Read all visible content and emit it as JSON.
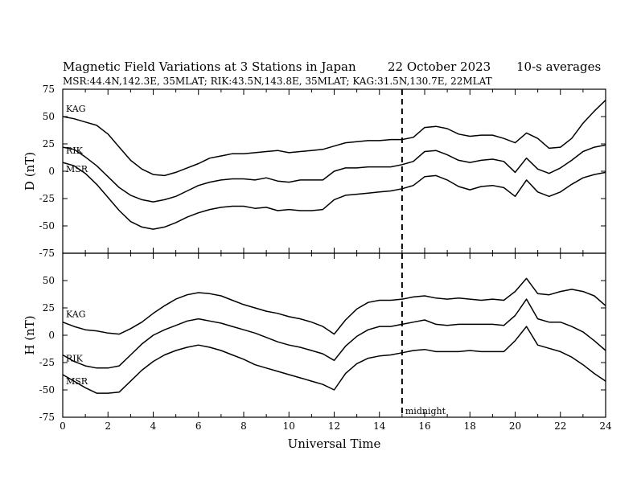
{
  "header": {
    "title": "Magnetic Field Variations at 3 Stations in Japan",
    "date": "22 October 2023",
    "averaging": "10-s averages",
    "stations_line": "MSR:44.4N,142.3E, 35MLAT;  RIK:43.5N,143.8E, 35MLAT;  KAG:31.5N,130.7E, 22MLAT"
  },
  "chart_data": [
    {
      "type": "line",
      "panel": "D",
      "ylabel": "D (nT)",
      "ylim": [
        -75,
        75
      ],
      "yticks": [
        75,
        50,
        25,
        0,
        -25,
        -50,
        -75
      ],
      "xlim": [
        0,
        24
      ],
      "grid": false,
      "series": [
        {
          "name": "KAG",
          "x": [
            0,
            0.5,
            1,
            1.5,
            2,
            2.5,
            3,
            3.5,
            4,
            4.5,
            5,
            5.5,
            6,
            6.5,
            7,
            7.5,
            8,
            8.5,
            9,
            9.5,
            10,
            10.5,
            11,
            11.5,
            12,
            12.5,
            13,
            13.5,
            14,
            14.5,
            15,
            15.5,
            16,
            16.5,
            17,
            17.5,
            18,
            18.5,
            19,
            19.5,
            20,
            20.5,
            21,
            21.5,
            22,
            22.5,
            23,
            23.5,
            24
          ],
          "values": [
            50,
            48,
            45,
            42,
            34,
            22,
            10,
            2,
            -3,
            -4,
            -1,
            3,
            7,
            12,
            14,
            16,
            16,
            17,
            18,
            19,
            17,
            18,
            19,
            20,
            23,
            26,
            27,
            28,
            28,
            29,
            29,
            31,
            40,
            41,
            39,
            34,
            32,
            33,
            33,
            30,
            26,
            35,
            30,
            21,
            22,
            30,
            44,
            55,
            65
          ]
        },
        {
          "name": "RIK",
          "x": [
            0,
            0.5,
            1,
            1.5,
            2,
            2.5,
            3,
            3.5,
            4,
            4.5,
            5,
            5.5,
            6,
            6.5,
            7,
            7.5,
            8,
            8.5,
            9,
            9.5,
            10,
            10.5,
            11,
            11.5,
            12,
            12.5,
            13,
            13.5,
            14,
            14.5,
            15,
            15.5,
            16,
            16.5,
            17,
            17.5,
            18,
            18.5,
            19,
            19.5,
            20,
            20.5,
            21,
            21.5,
            22,
            22.5,
            23,
            23.5,
            24
          ],
          "values": [
            22,
            20,
            13,
            5,
            -5,
            -15,
            -22,
            -26,
            -28,
            -26,
            -23,
            -18,
            -13,
            -10,
            -8,
            -7,
            -7,
            -8,
            -6,
            -9,
            -10,
            -8,
            -8,
            -8,
            0,
            3,
            3,
            4,
            4,
            4,
            6,
            9,
            18,
            19,
            15,
            10,
            8,
            10,
            11,
            9,
            -1,
            12,
            2,
            -2,
            3,
            10,
            18,
            22,
            24
          ]
        },
        {
          "name": "MSR",
          "x": [
            0,
            0.5,
            1,
            1.5,
            2,
            2.5,
            3,
            3.5,
            4,
            4.5,
            5,
            5.5,
            6,
            6.5,
            7,
            7.5,
            8,
            8.5,
            9,
            9.5,
            10,
            10.5,
            11,
            11.5,
            12,
            12.5,
            13,
            13.5,
            14,
            14.5,
            15,
            15.5,
            16,
            16.5,
            17,
            17.5,
            18,
            18.5,
            19,
            19.5,
            20,
            20.5,
            21,
            21.5,
            22,
            22.5,
            23,
            23.5,
            24
          ],
          "values": [
            8,
            5,
            -2,
            -12,
            -24,
            -36,
            -46,
            -51,
            -53,
            -51,
            -47,
            -42,
            -38,
            -35,
            -33,
            -32,
            -32,
            -34,
            -33,
            -36,
            -35,
            -36,
            -36,
            -35,
            -26,
            -22,
            -21,
            -20,
            -19,
            -18,
            -16,
            -13,
            -5,
            -4,
            -8,
            -14,
            -17,
            -14,
            -13,
            -15,
            -23,
            -8,
            -19,
            -23,
            -19,
            -12,
            -6,
            -3,
            -1
          ]
        }
      ]
    },
    {
      "type": "line",
      "panel": "H",
      "ylabel": "H (nT)",
      "ylim": [
        -75,
        75
      ],
      "yticks": [
        50,
        25,
        0,
        -25,
        -50,
        -75
      ],
      "xlim": [
        0,
        24
      ],
      "xticks": [
        0,
        2,
        4,
        6,
        8,
        10,
        12,
        14,
        16,
        18,
        20,
        22,
        24
      ],
      "xlabel": "Universal Time",
      "grid": false,
      "series": [
        {
          "name": "KAG",
          "x": [
            0,
            0.5,
            1,
            1.5,
            2,
            2.5,
            3,
            3.5,
            4,
            4.5,
            5,
            5.5,
            6,
            6.5,
            7,
            7.5,
            8,
            8.5,
            9,
            9.5,
            10,
            10.5,
            11,
            11.5,
            12,
            12.5,
            13,
            13.5,
            14,
            14.5,
            15,
            15.5,
            16,
            16.5,
            17,
            17.5,
            18,
            18.5,
            19,
            19.5,
            20,
            20.5,
            21,
            21.5,
            22,
            22.5,
            23,
            23.5,
            24
          ],
          "values": [
            12,
            8,
            5,
            4,
            2,
            1,
            6,
            12,
            20,
            27,
            33,
            37,
            39,
            38,
            36,
            32,
            28,
            25,
            22,
            20,
            17,
            15,
            12,
            8,
            1,
            14,
            24,
            30,
            32,
            32,
            33,
            35,
            36,
            34,
            33,
            34,
            33,
            32,
            33,
            32,
            40,
            52,
            38,
            37,
            40,
            42,
            40,
            36,
            27
          ]
        },
        {
          "name": "RIK",
          "x": [
            0,
            0.5,
            1,
            1.5,
            2,
            2.5,
            3,
            3.5,
            4,
            4.5,
            5,
            5.5,
            6,
            6.5,
            7,
            7.5,
            8,
            8.5,
            9,
            9.5,
            10,
            10.5,
            11,
            11.5,
            12,
            12.5,
            13,
            13.5,
            14,
            14.5,
            15,
            15.5,
            16,
            16.5,
            17,
            17.5,
            18,
            18.5,
            19,
            19.5,
            20,
            20.5,
            21,
            21.5,
            22,
            22.5,
            23,
            23.5,
            24
          ],
          "values": [
            -18,
            -24,
            -28,
            -30,
            -30,
            -28,
            -18,
            -8,
            0,
            5,
            9,
            13,
            15,
            13,
            11,
            8,
            5,
            2,
            -2,
            -6,
            -9,
            -11,
            -14,
            -17,
            -23,
            -10,
            -1,
            5,
            8,
            8,
            10,
            12,
            14,
            10,
            9,
            10,
            10,
            10,
            10,
            9,
            18,
            33,
            15,
            12,
            12,
            8,
            3,
            -5,
            -14
          ]
        },
        {
          "name": "MSR",
          "x": [
            0,
            0.5,
            1,
            1.5,
            2,
            2.5,
            3,
            3.5,
            4,
            4.5,
            5,
            5.5,
            6,
            6.5,
            7,
            7.5,
            8,
            8.5,
            9,
            9.5,
            10,
            10.5,
            11,
            11.5,
            12,
            12.5,
            13,
            13.5,
            14,
            14.5,
            15,
            15.5,
            16,
            16.5,
            17,
            17.5,
            18,
            18.5,
            19,
            19.5,
            20,
            20.5,
            21,
            21.5,
            22,
            22.5,
            23,
            23.5,
            24
          ],
          "values": [
            -36,
            -42,
            -48,
            -53,
            -53,
            -52,
            -42,
            -32,
            -24,
            -18,
            -14,
            -11,
            -9,
            -11,
            -14,
            -18,
            -22,
            -27,
            -30,
            -33,
            -36,
            -39,
            -42,
            -45,
            -50,
            -35,
            -26,
            -21,
            -19,
            -18,
            -16,
            -14,
            -13,
            -15,
            -15,
            -15,
            -14,
            -15,
            -15,
            -15,
            -5,
            8,
            -9,
            -12,
            -15,
            -20,
            -27,
            -35,
            -42
          ]
        }
      ]
    }
  ],
  "annotations": {
    "midnight_label": "midnight",
    "midnight_ut": 15
  }
}
